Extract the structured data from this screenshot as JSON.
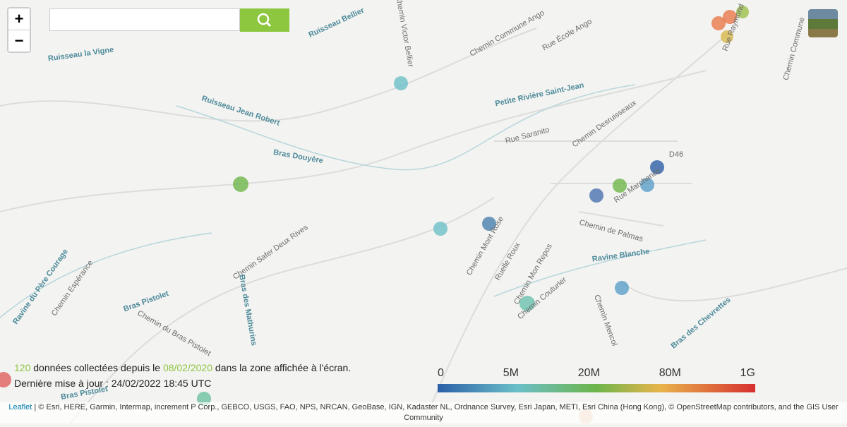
{
  "controls": {
    "zoom_in": "+",
    "zoom_out": "−"
  },
  "info": {
    "count": "120",
    "text_before_date": "données collectées depuis le",
    "date": "08/02/2020",
    "text_after_date": "dans la zone affichée à l'écran.",
    "update": "Dernière mise à jour : 24/02/2022 18:45 UTC"
  },
  "legend": {
    "labels": [
      "0",
      "5M",
      "20M",
      "80M",
      "1G"
    ]
  },
  "attribution": {
    "link": "Leaflet",
    "text": "| © Esri, HERE, Garmin, Intermap, increment P Corp., GEBCO, USGS, FAO, NPS, NRCAN, GeoBase, IGN, Kadaster NL, Ordnance Survey, Esri Japan, METI, Esri China (Hong Kong), © OpenStreetMap contributors, and the GIS User Community"
  },
  "map_labels": [
    "Ruisseau la Vigne",
    "Ruisseau Bellier",
    "Chemin Victor Bellier",
    "Chemin Commune Ango",
    "Rue École Ango",
    "Ruisseau Jean Robert",
    "Petite Rivière Saint-Jean",
    "Rue Saranito",
    "Chemin Desruisseaux",
    "Bras Douyère",
    "D46",
    "Rue Marchande",
    "Chemin de Palmas",
    "Ravine Blanche",
    "Chemin Mont Rose",
    "Chemin Safer Deux Rives",
    "Ruelle Roux",
    "Chemin Mon Repos",
    "Chemin Couturier",
    "Chemin Mencol",
    "Ravine du Père Courage",
    "Chemin Espérance",
    "Bras Pistolet",
    "Chemin du Bras Pistolet",
    "Bras des Mathurins",
    "Bras des Chevrettes",
    "Chemin Commune",
    "Rue Raymond",
    "Bras Pistolet"
  ]
}
